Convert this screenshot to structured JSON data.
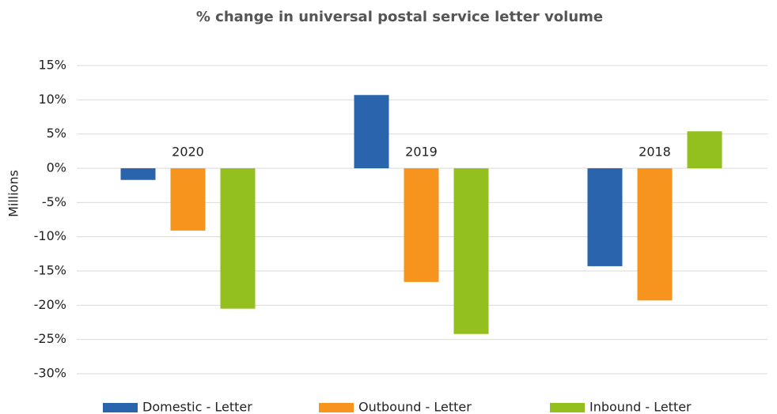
{
  "chart_data": {
    "type": "bar",
    "title": "% change in universal postal service letter volume",
    "y_label": "Millions",
    "categories": [
      "2020",
      "2019",
      "2018"
    ],
    "series": [
      {
        "name": "Domestic - Letter",
        "color": "#2a64ad",
        "values": [
          -1.7,
          10.7,
          -14.3
        ]
      },
      {
        "name": "Outbound - Letter",
        "color": "#f7941d",
        "values": [
          -9.1,
          -16.6,
          -19.3
        ]
      },
      {
        "name": "Inbound - Letter",
        "color": "#93bf1f",
        "values": [
          -20.5,
          -24.2,
          5.4
        ]
      }
    ],
    "ylim": [
      -30,
      15
    ],
    "yticks": [
      {
        "value": 15,
        "label": "15%"
      },
      {
        "value": 10,
        "label": "10%"
      },
      {
        "value": 5,
        "label": "5%"
      },
      {
        "value": 0,
        "label": "0%"
      },
      {
        "value": -5,
        "label": "-5%"
      },
      {
        "value": -10,
        "label": "-10%"
      },
      {
        "value": -15,
        "label": "-15%"
      },
      {
        "value": -20,
        "label": "-20%"
      },
      {
        "value": -25,
        "label": "-25%"
      },
      {
        "value": -30,
        "label": "-30%"
      }
    ],
    "grid": true,
    "legend": "bottom"
  }
}
